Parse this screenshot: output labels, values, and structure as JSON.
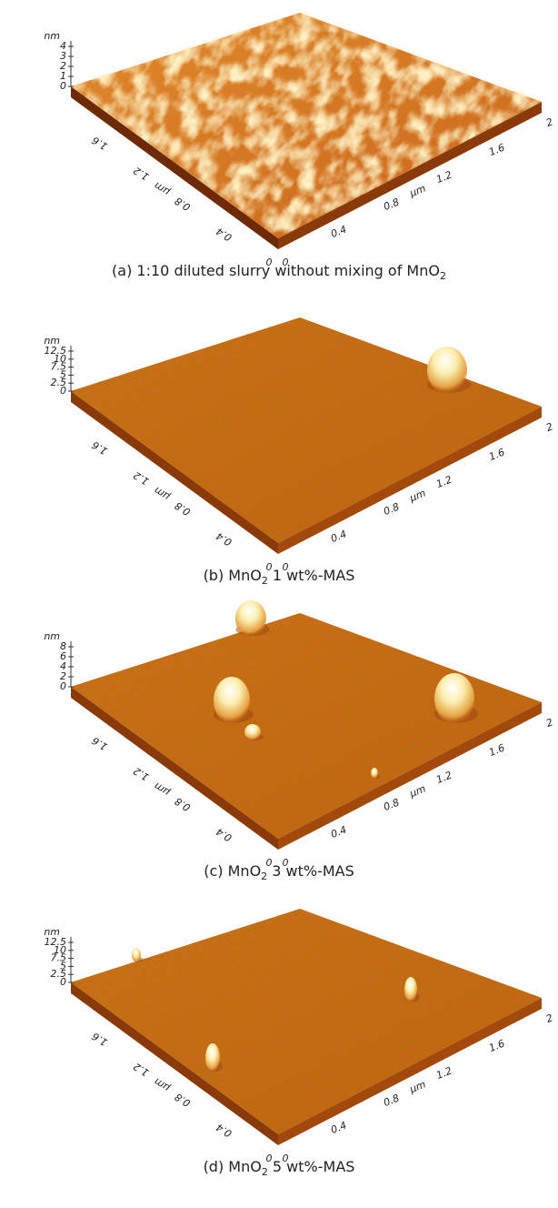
{
  "panels": [
    {
      "caption": [
        "(a) 1:10 diluted slurry without mixing of MnO",
        "2"
      ],
      "z_unit": "nm",
      "z_ticks": [
        "4",
        "3",
        "2",
        "1",
        "0"
      ],
      "left_ticks": [
        "1.6",
        "1.2",
        "0.8",
        "0.4"
      ],
      "left_unit": "µm",
      "right_ticks": [
        "0.4",
        "0.8",
        "1.2",
        "1.6",
        "2"
      ],
      "right_unit": "µm",
      "origin": [
        "0",
        "0"
      ]
    },
    {
      "caption": [
        "(b) MnO",
        "2",
        " 1 wt%-MAS"
      ],
      "z_unit": "nm",
      "z_ticks": [
        "12.5",
        "10",
        "7.5",
        "5",
        "2.5",
        "0"
      ],
      "left_ticks": [
        "1.6",
        "1.2",
        "0.8",
        "0.4"
      ],
      "left_unit": "µm",
      "right_ticks": [
        "0.4",
        "0.8",
        "1.2",
        "1.6",
        "2"
      ],
      "right_unit": "µm",
      "origin": [
        "0",
        "0"
      ]
    },
    {
      "caption": [
        "(c) MnO",
        "2",
        " 3 wt%-MAS"
      ],
      "z_unit": "nm",
      "z_ticks": [
        "8",
        "6",
        "4",
        "2",
        "0"
      ],
      "left_ticks": [
        "1.6",
        "1.2",
        "0.8",
        "0.4"
      ],
      "left_unit": "µm",
      "right_ticks": [
        "0.4",
        "0.8",
        "1.2",
        "1.6",
        "2"
      ],
      "right_unit": "µm",
      "origin": [
        "0",
        "0"
      ]
    },
    {
      "caption": [
        "(d) MnO",
        "2",
        " 5 wt%-MAS"
      ],
      "z_unit": "nm",
      "z_ticks": [
        "12.5",
        "10",
        "7.5",
        "5",
        "2.5",
        "0"
      ],
      "left_ticks": [
        "1.6",
        "1.2",
        "0.8",
        "0.4"
      ],
      "left_unit": "µm",
      "right_ticks": [
        "0.4",
        "0.8",
        "1.2",
        "1.6",
        "2"
      ],
      "right_unit": "µm",
      "origin": [
        "0",
        "0"
      ]
    }
  ]
}
